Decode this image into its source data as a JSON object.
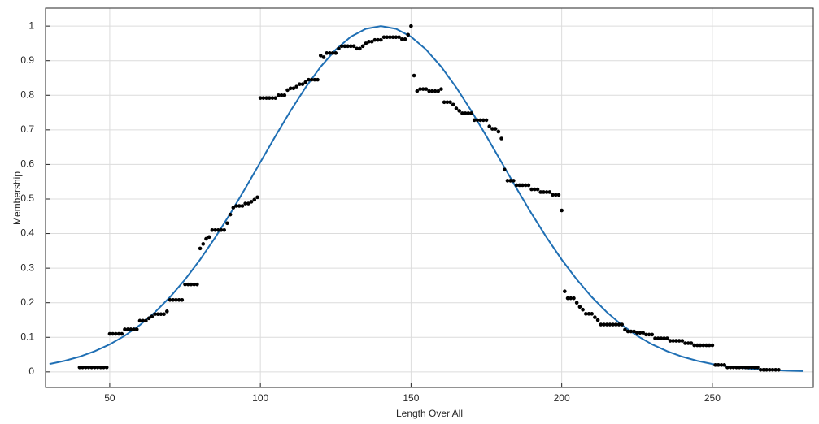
{
  "chart_data": {
    "type": "scatter",
    "xlabel": "Length Over All",
    "ylabel": "Membership",
    "xlim": [
      28.7,
      283.5
    ],
    "ylim": [
      -0.045,
      1.052
    ],
    "xticks": [
      50,
      100,
      150,
      200,
      250
    ],
    "yticks": [
      0,
      0.1,
      0.2,
      0.3,
      0.4,
      0.5,
      0.6,
      0.7,
      0.8,
      0.9,
      1
    ],
    "grid": true,
    "points": {
      "color": "#000000",
      "x": [
        40,
        41,
        42,
        43,
        44,
        45,
        46,
        47,
        48,
        49,
        50,
        51,
        52,
        53,
        54,
        55,
        56,
        57,
        58,
        59,
        60,
        61,
        62,
        63,
        64,
        65,
        66,
        67,
        68,
        69,
        70,
        71,
        72,
        73,
        74,
        75,
        76,
        77,
        78,
        79,
        80,
        81,
        82,
        83,
        84,
        85,
        86,
        87,
        88,
        89,
        90,
        91,
        92,
        93,
        94,
        95,
        96,
        97,
        98,
        99,
        100,
        101,
        102,
        103,
        104,
        105,
        106,
        107,
        108,
        109,
        110,
        111,
        112,
        113,
        114,
        115,
        116,
        117,
        118,
        119,
        120,
        121,
        122,
        123,
        124,
        125,
        126,
        127,
        128,
        129,
        130,
        131,
        132,
        133,
        134,
        135,
        136,
        137,
        138,
        139,
        140,
        141,
        142,
        143,
        144,
        145,
        146,
        147,
        148,
        149,
        150,
        151,
        152,
        153,
        154,
        155,
        156,
        157,
        158,
        159,
        160,
        161,
        162,
        163,
        164,
        165,
        166,
        167,
        168,
        169,
        170,
        171,
        172,
        173,
        174,
        175,
        176,
        177,
        178,
        179,
        180,
        181,
        182,
        183,
        184,
        185,
        186,
        187,
        188,
        189,
        190,
        191,
        192,
        193,
        194,
        195,
        196,
        197,
        198,
        199,
        200,
        201,
        202,
        203,
        204,
        205,
        206,
        207,
        208,
        209,
        210,
        211,
        212,
        213,
        214,
        215,
        216,
        217,
        218,
        219,
        220,
        221,
        222,
        223,
        224,
        225,
        226,
        227,
        228,
        229,
        230,
        231,
        232,
        233,
        234,
        235,
        236,
        237,
        238,
        239,
        240,
        241,
        242,
        243,
        244,
        245,
        246,
        247,
        248,
        249,
        250,
        251,
        252,
        253,
        254,
        255,
        256,
        257,
        258,
        259,
        260,
        261,
        262,
        263,
        264,
        265,
        266,
        267,
        268,
        269,
        270,
        271,
        272
      ],
      "values": [
        0.013,
        0.013,
        0.013,
        0.013,
        0.013,
        0.013,
        0.013,
        0.013,
        0.013,
        0.013,
        0.11,
        0.11,
        0.11,
        0.11,
        0.11,
        0.123,
        0.123,
        0.123,
        0.123,
        0.123,
        0.148,
        0.148,
        0.148,
        0.155,
        0.16,
        0.167,
        0.167,
        0.167,
        0.167,
        0.175,
        0.208,
        0.208,
        0.208,
        0.208,
        0.208,
        0.253,
        0.253,
        0.253,
        0.253,
        0.253,
        0.357,
        0.37,
        0.385,
        0.39,
        0.41,
        0.41,
        0.41,
        0.41,
        0.41,
        0.43,
        0.455,
        0.475,
        0.48,
        0.48,
        0.48,
        0.487,
        0.487,
        0.492,
        0.498,
        0.505,
        0.792,
        0.792,
        0.792,
        0.792,
        0.792,
        0.792,
        0.8,
        0.8,
        0.8,
        0.815,
        0.82,
        0.82,
        0.825,
        0.832,
        0.832,
        0.838,
        0.845,
        0.845,
        0.845,
        0.845,
        0.915,
        0.91,
        0.922,
        0.922,
        0.922,
        0.922,
        0.935,
        0.942,
        0.942,
        0.942,
        0.942,
        0.942,
        0.935,
        0.935,
        0.942,
        0.95,
        0.955,
        0.955,
        0.96,
        0.96,
        0.96,
        0.968,
        0.968,
        0.968,
        0.968,
        0.968,
        0.968,
        0.962,
        0.962,
        0.975,
        1,
        0.857,
        0.812,
        0.818,
        0.818,
        0.818,
        0.812,
        0.812,
        0.812,
        0.812,
        0.818,
        0.78,
        0.78,
        0.78,
        0.773,
        0.762,
        0.755,
        0.748,
        0.748,
        0.748,
        0.748,
        0.728,
        0.728,
        0.728,
        0.728,
        0.728,
        0.71,
        0.703,
        0.703,
        0.695,
        0.675,
        0.585,
        0.553,
        0.553,
        0.553,
        0.54,
        0.54,
        0.54,
        0.54,
        0.54,
        0.528,
        0.528,
        0.528,
        0.52,
        0.52,
        0.52,
        0.52,
        0.512,
        0.512,
        0.512,
        0.467,
        0.233,
        0.213,
        0.213,
        0.213,
        0.2,
        0.188,
        0.18,
        0.168,
        0.168,
        0.168,
        0.158,
        0.15,
        0.137,
        0.137,
        0.137,
        0.137,
        0.137,
        0.137,
        0.137,
        0.137,
        0.122,
        0.117,
        0.117,
        0.117,
        0.113,
        0.113,
        0.113,
        0.108,
        0.108,
        0.108,
        0.097,
        0.097,
        0.097,
        0.097,
        0.097,
        0.09,
        0.09,
        0.09,
        0.09,
        0.09,
        0.083,
        0.083,
        0.083,
        0.077,
        0.077,
        0.077,
        0.077,
        0.077,
        0.077,
        0.077,
        0.02,
        0.02,
        0.02,
        0.02,
        0.013,
        0.013,
        0.013,
        0.013,
        0.013,
        0.013,
        0.013,
        0.013,
        0.013,
        0.013,
        0.013,
        0.006,
        0.006,
        0.006,
        0.006,
        0.006,
        0.006,
        0.006
      ]
    },
    "curve": {
      "color": "#1f6fb4",
      "x": [
        30,
        35,
        40,
        45,
        50,
        55,
        60,
        65,
        70,
        75,
        80,
        85,
        90,
        95,
        100,
        105,
        110,
        115,
        120,
        125,
        130,
        135,
        140,
        145,
        150,
        155,
        160,
        165,
        170,
        175,
        180,
        185,
        190,
        195,
        200,
        205,
        210,
        215,
        220,
        225,
        230,
        235,
        240,
        245,
        250,
        255,
        260,
        265,
        270,
        275,
        280
      ],
      "values": [
        0.0228,
        0.0319,
        0.0439,
        0.0596,
        0.0796,
        0.1046,
        0.1353,
        0.1724,
        0.2163,
        0.2671,
        0.3247,
        0.3886,
        0.4578,
        0.5311,
        0.6065,
        0.6819,
        0.7548,
        0.8226,
        0.8825,
        0.9321,
        0.9692,
        0.9922,
        1,
        0.9922,
        0.9692,
        0.9321,
        0.8825,
        0.8226,
        0.7548,
        0.6819,
        0.6065,
        0.5311,
        0.4578,
        0.3886,
        0.3247,
        0.2671,
        0.2163,
        0.1724,
        0.1353,
        0.1046,
        0.0796,
        0.0596,
        0.0439,
        0.0319,
        0.0228,
        0.016,
        0.0111,
        0.0076,
        0.0051,
        0.0034,
        0.0022
      ]
    }
  }
}
